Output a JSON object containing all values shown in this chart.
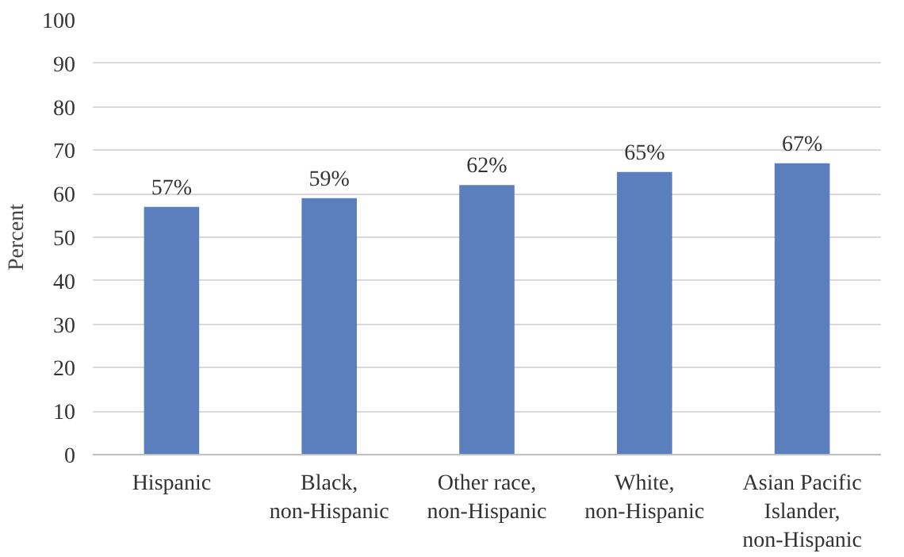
{
  "chart_data": {
    "type": "bar",
    "ylabel": "Percent",
    "categories": [
      "Hispanic",
      "Black, non-Hispanic",
      "Other race, non-Hispanic",
      "White, non-Hispanic",
      "Asian Pacific Islander, non-Hispanic"
    ],
    "values": [
      57,
      59,
      62,
      65,
      67
    ],
    "value_labels": [
      "57%",
      "59%",
      "62%",
      "65%",
      "67%"
    ],
    "color": "#5b7fbd",
    "ylim": [
      0,
      100
    ],
    "yticks": [
      0,
      10,
      20,
      30,
      40,
      50,
      60,
      70,
      80,
      90,
      100
    ],
    "grid": "y"
  }
}
